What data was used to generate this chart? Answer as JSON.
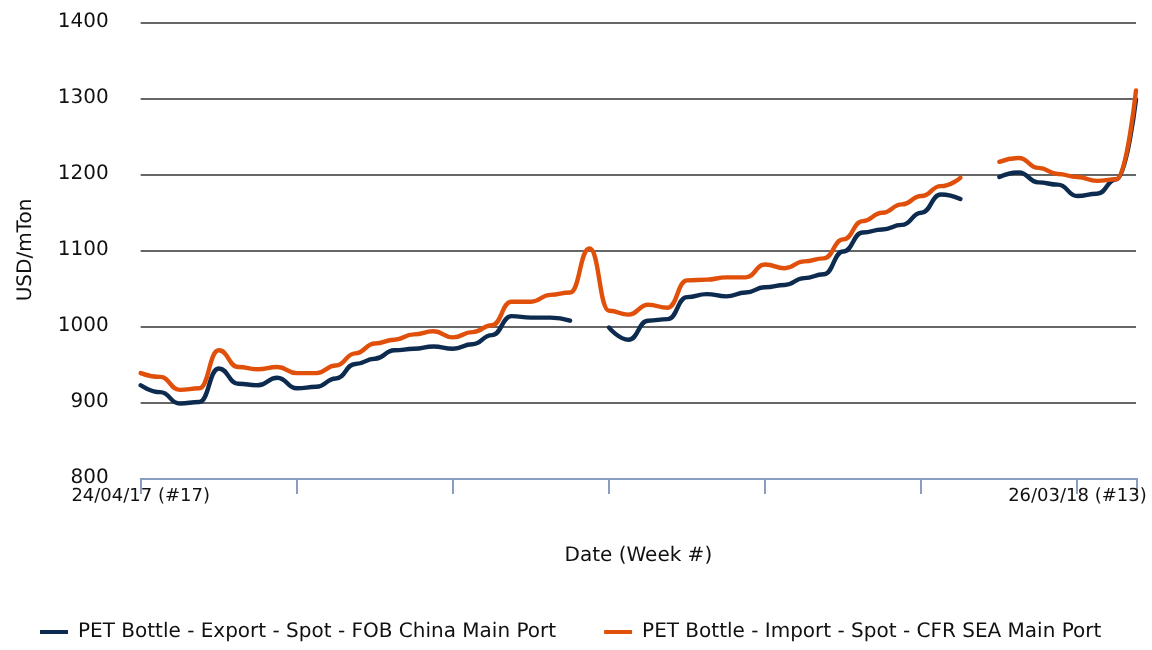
{
  "chart_data": {
    "type": "line",
    "xlabel": "Date (Week #)",
    "ylabel": "USD/mTon",
    "categories": [
      "24/04/17 (#17)",
      null,
      null,
      null,
      null,
      null,
      null,
      null,
      null,
      null,
      null,
      null,
      null,
      null,
      null,
      null,
      null,
      null,
      null,
      null,
      null,
      null,
      null,
      null,
      null,
      null,
      null,
      null,
      null,
      null,
      null,
      null,
      null,
      null,
      null,
      null,
      null,
      null,
      null,
      null,
      null,
      null,
      null,
      null,
      null,
      null,
      null,
      null,
      "26/03/18 (#13)",
      null,
      null,
      null
    ],
    "series": [
      {
        "name": "PET Bottle - Export - Spot - FOB China Main Port",
        "color": "#0d2a4f",
        "values": [
          922,
          913,
          898,
          900,
          944,
          924,
          922,
          932,
          918,
          920,
          931,
          950,
          957,
          968,
          970,
          973,
          970,
          976,
          988,
          1013,
          1011,
          1011,
          1007,
          null,
          998,
          982,
          1007,
          1009,
          1038,
          1042,
          1039,
          1044,
          1051,
          1054,
          1063,
          1068,
          1098,
          1123,
          1127,
          1133,
          1149,
          1173,
          1167,
          null,
          1196,
          1202,
          1189,
          1186,
          1171,
          1174,
          1193,
          1298
        ]
      },
      {
        "name": "PET Bottle - Import - Spot - CFR SEA Main Port",
        "color": "#e0500a",
        "values": [
          938,
          933,
          916,
          918,
          968,
          946,
          943,
          946,
          938,
          938,
          948,
          964,
          977,
          982,
          989,
          993,
          985,
          992,
          1001,
          1032,
          1032,
          1041,
          1044,
          1102,
          1020,
          1015,
          1028,
          1024,
          1060,
          1061,
          1064,
          1064,
          1081,
          1076,
          1085,
          1089,
          1114,
          1138,
          1149,
          1160,
          1171,
          1184,
          1195,
          null,
          1216,
          1221,
          1208,
          1200,
          1196,
          1191,
          1193,
          1310
        ]
      }
    ],
    "ylim": [
      800,
      1400
    ],
    "yticks": [
      800,
      900,
      1000,
      1100,
      1200,
      1300,
      1400
    ],
    "grid": "y",
    "legend": "bottom",
    "marker": "none",
    "line_style": "solid"
  }
}
